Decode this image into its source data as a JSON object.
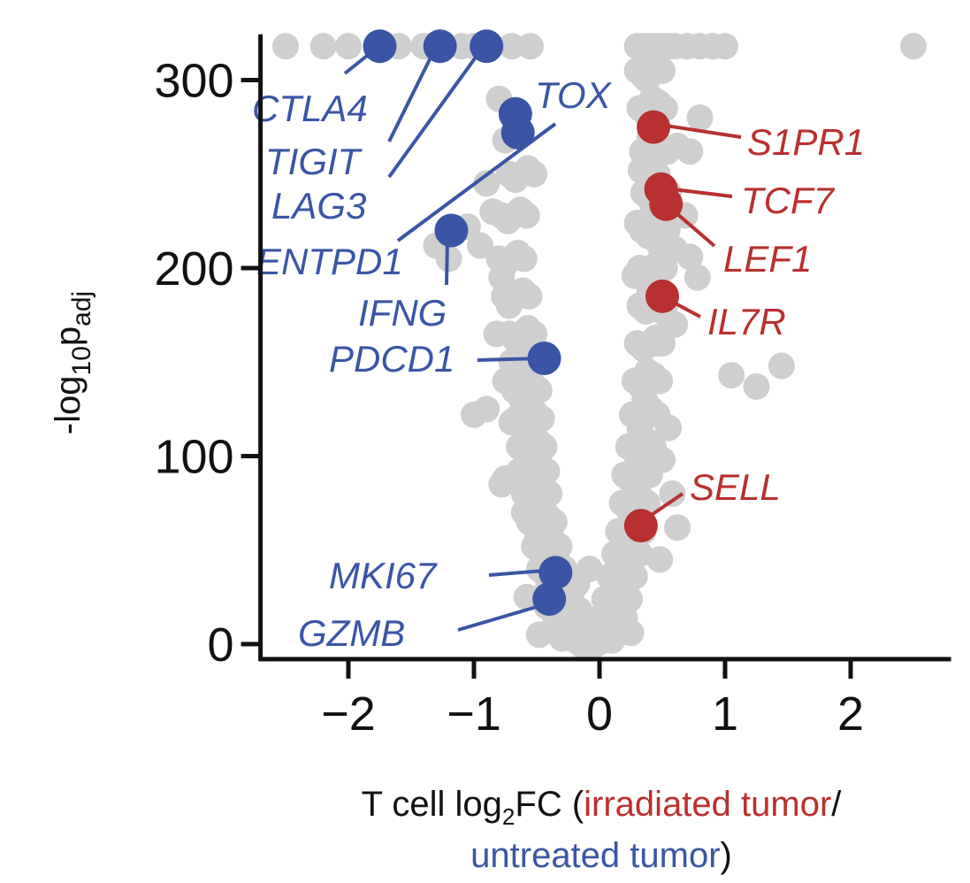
{
  "chart_data": {
    "type": "scatter",
    "title": "",
    "xlabel": {
      "prefix": "T cell log",
      "subscript": "2",
      "suffix": "FC (",
      "numerator": "irradiated tumor",
      "separator": "/",
      "denominator": "untreated tumor",
      "close": ")"
    },
    "ylabel": {
      "prefix": "-log",
      "subscript1": "10",
      "main": "p",
      "subscript2": "adj"
    },
    "xlim": [
      -2.7,
      2.8
    ],
    "ylim": [
      -8,
      322
    ],
    "xticks": [
      -2,
      -1,
      0,
      1,
      2
    ],
    "xtick_labels": [
      "−2",
      "−1",
      "0",
      "1",
      "2"
    ],
    "yticks": [
      0,
      100,
      200,
      300
    ],
    "ytick_labels": [
      "0",
      "100",
      "200",
      "300"
    ],
    "grid": false,
    "colors": {
      "down": "#3a55a5",
      "up": "#b8302f",
      "background": "#cfcfcf",
      "axis": "#111111"
    },
    "background_points": [
      [
        -2.5,
        318
      ],
      [
        -2.2,
        318
      ],
      [
        -2.0,
        318
      ],
      [
        -1.6,
        318
      ],
      [
        -1.4,
        318
      ],
      [
        -1.1,
        318
      ],
      [
        -1.0,
        318
      ],
      [
        -0.7,
        318
      ],
      [
        -0.55,
        318
      ],
      [
        0.3,
        318
      ],
      [
        0.35,
        318
      ],
      [
        0.4,
        318
      ],
      [
        0.45,
        318
      ],
      [
        0.5,
        318
      ],
      [
        0.55,
        318
      ],
      [
        0.6,
        318
      ],
      [
        0.7,
        318
      ],
      [
        0.8,
        318
      ],
      [
        0.9,
        318
      ],
      [
        1.0,
        318
      ],
      [
        2.5,
        318
      ],
      [
        -0.75,
        268
      ],
      [
        -0.8,
        290
      ],
      [
        -0.9,
        245
      ],
      [
        -0.95,
        212
      ],
      [
        -0.85,
        230
      ],
      [
        -1.05,
        222
      ],
      [
        -1.3,
        212
      ],
      [
        -1.2,
        205
      ],
      [
        -0.78,
        195
      ],
      [
        -0.72,
        180
      ],
      [
        -0.82,
        165
      ],
      [
        -0.68,
        150
      ],
      [
        -0.75,
        140
      ],
      [
        -0.9,
        125
      ],
      [
        -1.0,
        122
      ],
      [
        -0.62,
        130
      ],
      [
        -0.7,
        118
      ],
      [
        -0.58,
        105
      ],
      [
        -0.64,
        92
      ],
      [
        -0.78,
        85
      ],
      [
        -0.55,
        78
      ],
      [
        -0.6,
        70
      ],
      [
        -0.5,
        55
      ],
      [
        -0.45,
        45
      ],
      [
        -0.75,
        88
      ],
      [
        -0.58,
        25
      ],
      [
        -0.42,
        20
      ],
      [
        -0.35,
        12
      ],
      [
        -0.25,
        8
      ],
      [
        -0.2,
        4
      ],
      [
        -0.1,
        2
      ],
      [
        0.0,
        1
      ],
      [
        0.1,
        2
      ],
      [
        -0.48,
        5
      ],
      [
        -0.3,
        3
      ],
      [
        -0.18,
        32
      ],
      [
        -0.08,
        40
      ],
      [
        0.12,
        30
      ],
      [
        0.18,
        15
      ],
      [
        0.25,
        6
      ],
      [
        0.38,
        300
      ],
      [
        0.42,
        290
      ],
      [
        0.4,
        270
      ],
      [
        0.46,
        250
      ],
      [
        0.33,
        252
      ],
      [
        0.43,
        232
      ],
      [
        0.3,
        224
      ],
      [
        0.48,
        212
      ],
      [
        0.28,
        196
      ],
      [
        0.4,
        188
      ],
      [
        0.52,
        176
      ],
      [
        0.45,
        160
      ],
      [
        0.38,
        145
      ],
      [
        0.36,
        130
      ],
      [
        0.32,
        115
      ],
      [
        0.4,
        100
      ],
      [
        0.35,
        90
      ],
      [
        0.28,
        75
      ],
      [
        0.22,
        62
      ],
      [
        0.2,
        48
      ],
      [
        0.15,
        35
      ],
      [
        0.62,
        265
      ],
      [
        0.72,
        262
      ],
      [
        0.8,
        280
      ],
      [
        0.68,
        228
      ],
      [
        0.6,
        210
      ],
      [
        0.72,
        206
      ],
      [
        0.78,
        195
      ],
      [
        0.6,
        170
      ],
      [
        1.05,
        143
      ],
      [
        1.25,
        137
      ],
      [
        1.45,
        148
      ],
      [
        0.55,
        115
      ],
      [
        0.5,
        98
      ],
      [
        0.58,
        80
      ],
      [
        0.62,
        62
      ],
      [
        0.48,
        45
      ]
    ],
    "highlight_points": [
      {
        "gene": "CTLA4",
        "x": -1.75,
        "y": 318,
        "group": "down"
      },
      {
        "gene": "TIGIT",
        "x": -1.27,
        "y": 318,
        "group": "down"
      },
      {
        "gene": "LAG3",
        "x": -0.9,
        "y": 318,
        "group": "down"
      },
      {
        "gene": "TOX",
        "x": -0.67,
        "y": 282,
        "group": "down"
      },
      {
        "gene": "ENTPD1",
        "x": -0.65,
        "y": 272,
        "group": "down"
      },
      {
        "gene": "IFNG",
        "x": -1.18,
        "y": 220,
        "group": "down"
      },
      {
        "gene": "PDCD1",
        "x": -0.44,
        "y": 152,
        "group": "down"
      },
      {
        "gene": "MKI67",
        "x": -0.35,
        "y": 38,
        "group": "down"
      },
      {
        "gene": "GZMB",
        "x": -0.4,
        "y": 24,
        "group": "down"
      },
      {
        "gene": "S1PR1",
        "x": 0.43,
        "y": 275,
        "group": "up"
      },
      {
        "gene": "TCF7",
        "x": 0.49,
        "y": 242,
        "group": "up"
      },
      {
        "gene": "LEF1",
        "x": 0.53,
        "y": 234,
        "group": "up"
      },
      {
        "gene": "IL7R",
        "x": 0.5,
        "y": 185,
        "group": "up"
      },
      {
        "gene": "SELL",
        "x": 0.33,
        "y": 63,
        "group": "up"
      }
    ]
  }
}
